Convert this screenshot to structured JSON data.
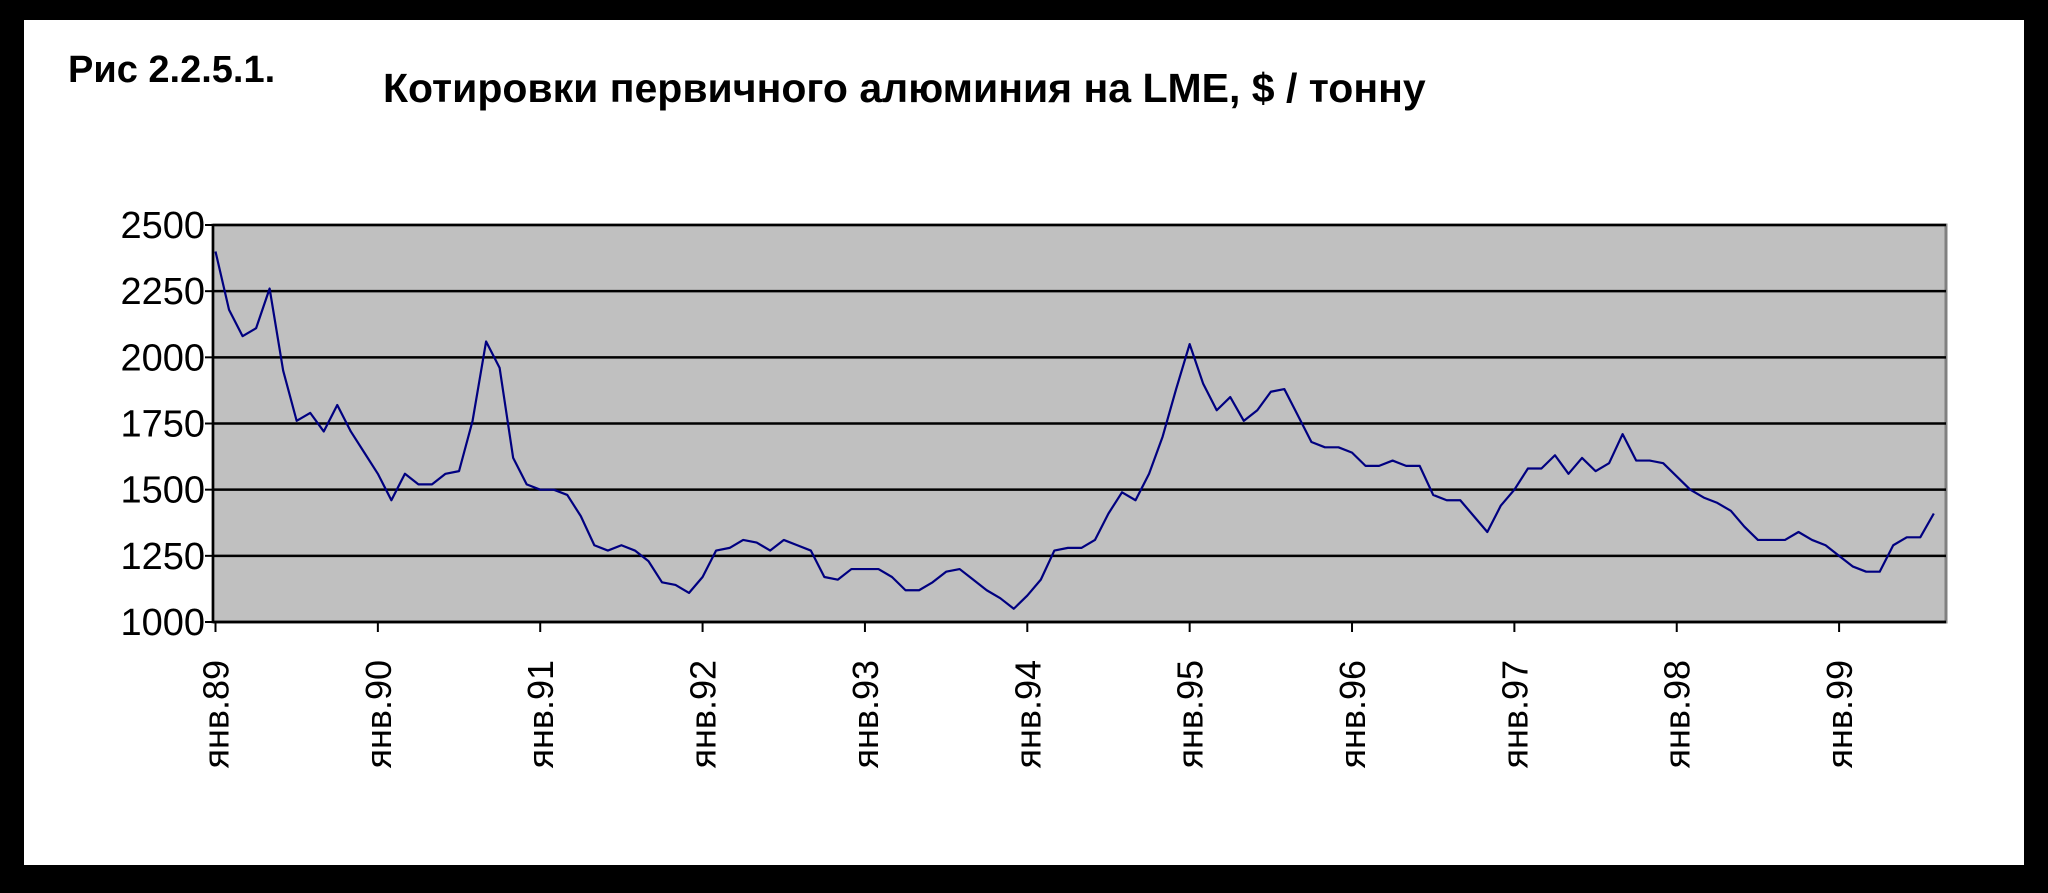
{
  "chart_data": {
    "type": "line",
    "figure_label": "Рис 2.2.5.1.",
    "title": "Котировки первичного алюминия на LME, $ / тонну",
    "categories": [
      "янв.89",
      null,
      null,
      null,
      null,
      null,
      null,
      null,
      null,
      null,
      null,
      null,
      "янв.90",
      null,
      null,
      null,
      null,
      null,
      null,
      null,
      null,
      null,
      null,
      null,
      "янв.91",
      null,
      null,
      null,
      null,
      null,
      null,
      null,
      null,
      null,
      null,
      null,
      "янв.92",
      null,
      null,
      null,
      null,
      null,
      null,
      null,
      null,
      null,
      null,
      null,
      "янв.93",
      null,
      null,
      null,
      null,
      null,
      null,
      null,
      null,
      null,
      null,
      null,
      "янв.94",
      null,
      null,
      null,
      null,
      null,
      null,
      null,
      null,
      null,
      null,
      null,
      "янв.95",
      null,
      null,
      null,
      null,
      null,
      null,
      null,
      null,
      null,
      null,
      null,
      "янв.96",
      null,
      null,
      null,
      null,
      null,
      null,
      null,
      null,
      null,
      null,
      null,
      "янв.97",
      null,
      null,
      null,
      null,
      null,
      null,
      null,
      null,
      null,
      null,
      null,
      "янв.98",
      null,
      null,
      null,
      null,
      null,
      null,
      null,
      null,
      null,
      null,
      null,
      "янв.99",
      null,
      null,
      null,
      null,
      null,
      null,
      null
    ],
    "series": [
      {
        "color": "#000080",
        "values": [
          2400,
          2180,
          2080,
          2110,
          2260,
          1950,
          1760,
          1790,
          1720,
          1820,
          1720,
          1640,
          1560,
          1460,
          1560,
          1520,
          1520,
          1560,
          1570,
          1760,
          2060,
          1960,
          1620,
          1520,
          1500,
          1500,
          1480,
          1400,
          1290,
          1270,
          1290,
          1270,
          1230,
          1150,
          1140,
          1110,
          1170,
          1270,
          1280,
          1310,
          1300,
          1270,
          1310,
          1290,
          1270,
          1170,
          1160,
          1200,
          1200,
          1200,
          1170,
          1120,
          1120,
          1150,
          1190,
          1200,
          1160,
          1120,
          1090,
          1050,
          1100,
          1160,
          1270,
          1280,
          1280,
          1310,
          1410,
          1490,
          1460,
          1560,
          1700,
          1880,
          2050,
          1900,
          1800,
          1850,
          1760,
          1800,
          1870,
          1880,
          1780,
          1680,
          1660,
          1660,
          1640,
          1590,
          1590,
          1610,
          1590,
          1590,
          1480,
          1460,
          1460,
          1400,
          1340,
          1440,
          1500,
          1580,
          1580,
          1630,
          1560,
          1620,
          1570,
          1600,
          1710,
          1610,
          1610,
          1600,
          1550,
          1500,
          1470,
          1450,
          1420,
          1360,
          1310,
          1310,
          1310,
          1340,
          1310,
          1290,
          1250,
          1210,
          1190,
          1190,
          1290,
          1320,
          1320,
          1410
        ]
      }
    ],
    "ylim": [
      1000,
      2500
    ],
    "yticks": [
      1000,
      1250,
      1500,
      1750,
      2000,
      2250,
      2500
    ],
    "grid": true,
    "plot_background": "#c0c0c0"
  }
}
